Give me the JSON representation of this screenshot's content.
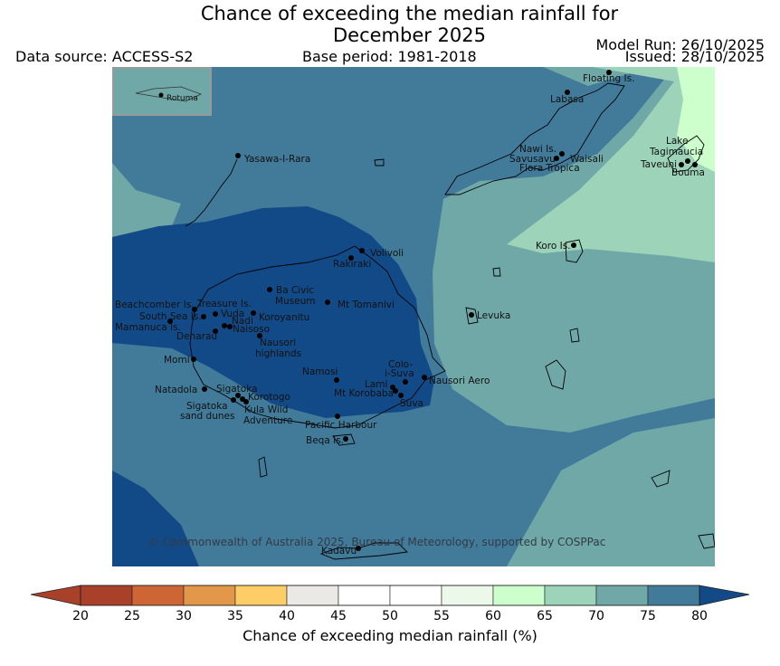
{
  "title": {
    "line1": "Chance of exceeding the median rainfall for",
    "line2": "December 2025"
  },
  "data_source": "Data source: ACCESS-S2",
  "base_period": "Base period: 1981-2018",
  "model_run": "Model Run: 26/10/2025",
  "issued": "Issued: 28/10/2025",
  "inset_label": "Rotuma",
  "copyright": "© Commonwealth of Australia 2025, Bureau of Meteorology, supported by COSPPac",
  "colors": {
    "c20": "#a9412a",
    "c25": "#cd6534",
    "c30": "#e39748",
    "c35": "#fecd67",
    "c40": "#ebe9e5",
    "c45": "#ffffff",
    "c50": "#ffffff",
    "c55": "#ecf9ea",
    "c60": "#ccffcc",
    "c65": "#9cd3b9",
    "c70": "#70a8a8",
    "c75": "#427b9a",
    "c80": "#124a87",
    "land_outline": "#000000"
  },
  "places": [
    {
      "name": "Floating Is."
    },
    {
      "name": "Labasa"
    },
    {
      "name": "Nawi Is."
    },
    {
      "name": "Savusavu"
    },
    {
      "name": "Waisali"
    },
    {
      "name": "Flora Tropica"
    },
    {
      "name": "Lake Tagimaucia"
    },
    {
      "name": "Taveuni"
    },
    {
      "name": "Bouma"
    },
    {
      "name": "Yasawa-I-Rara"
    },
    {
      "name": "Volivoli"
    },
    {
      "name": "Rakiraki"
    },
    {
      "name": "Koro Is."
    },
    {
      "name": "Ba Civic Museum"
    },
    {
      "name": "Mt Tomanivi"
    },
    {
      "name": "Beachcomber Is."
    },
    {
      "name": "Treasure Is."
    },
    {
      "name": "South Sea Is."
    },
    {
      "name": "Vuda"
    },
    {
      "name": "Koroyanitu"
    },
    {
      "name": "Nadi"
    },
    {
      "name": "Naisoso"
    },
    {
      "name": "Mamanuca Is."
    },
    {
      "name": "Denarau"
    },
    {
      "name": "Levuka"
    },
    {
      "name": "Nausori highlands"
    },
    {
      "name": "Momi"
    },
    {
      "name": "Namosi"
    },
    {
      "name": "Colo-i-Suva"
    },
    {
      "name": "Lami"
    },
    {
      "name": "Nausori Aero"
    },
    {
      "name": "Natadola"
    },
    {
      "name": "Sigatoka"
    },
    {
      "name": "Korotogo"
    },
    {
      "name": "Mt Korobaba"
    },
    {
      "name": "Suva"
    },
    {
      "name": "Sigatoka sand dunes"
    },
    {
      "name": "Kula Wild Adventure"
    },
    {
      "name": "Pacific Harbour"
    },
    {
      "name": "Beqa Is."
    },
    {
      "name": "Kadavu"
    }
  ],
  "colorbar": {
    "ticks": [
      "20",
      "25",
      "30",
      "35",
      "40",
      "45",
      "50",
      "55",
      "60",
      "65",
      "70",
      "75",
      "80"
    ],
    "bins": [
      20,
      25,
      30,
      35,
      40,
      45,
      50,
      55,
      60,
      65,
      70,
      75
    ],
    "label": "Chance of exceeding median rainfall (%)"
  }
}
